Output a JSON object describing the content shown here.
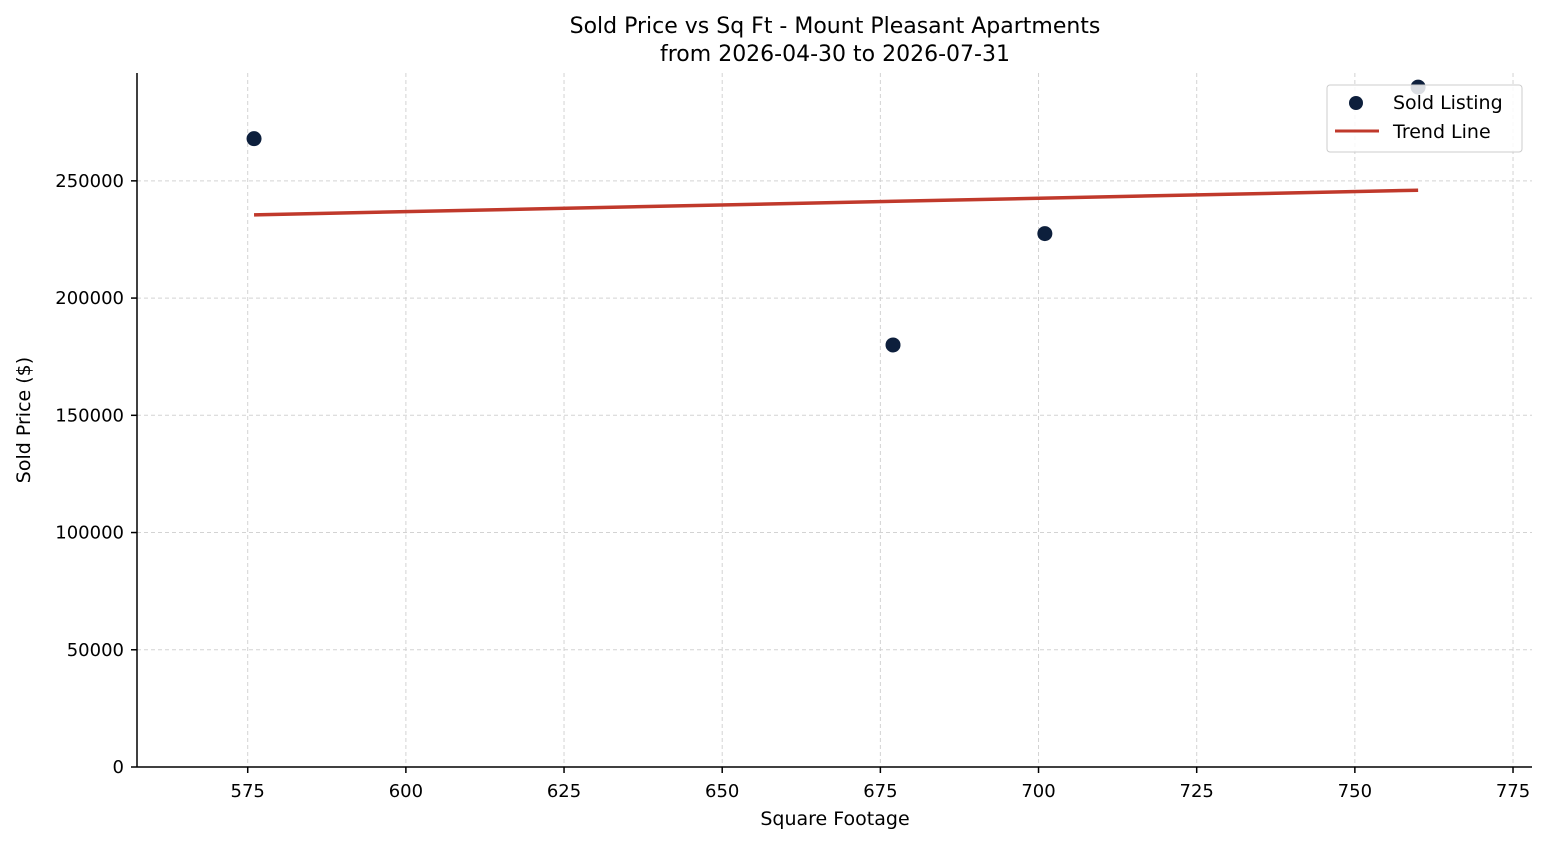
{
  "chart_data": {
    "type": "scatter",
    "title": "Sold Price vs Sq Ft - Mount Pleasant Apartments",
    "subtitle": "from 2026-04-30 to 2026-07-31",
    "xlabel": "Square Footage",
    "ylabel": "Sold Price ($)",
    "xlim": [
      557.5,
      778
    ],
    "ylim": [
      0,
      296000
    ],
    "xticks": [
      575,
      600,
      625,
      650,
      675,
      700,
      725,
      750,
      775
    ],
    "yticks": [
      0,
      50000,
      100000,
      150000,
      200000,
      250000
    ],
    "grid": true,
    "legend_position": "top-right",
    "series": [
      {
        "name": "Sold Listing",
        "kind": "scatter",
        "color": "#0d1f3c",
        "points": [
          {
            "x": 576,
            "y": 268000
          },
          {
            "x": 677,
            "y": 180000
          },
          {
            "x": 701,
            "y": 227500
          },
          {
            "x": 760,
            "y": 290000
          }
        ]
      },
      {
        "name": "Trend Line",
        "kind": "line",
        "color": "#c0392b",
        "points": [
          {
            "x": 576,
            "y": 235500
          },
          {
            "x": 760,
            "y": 246000
          }
        ]
      }
    ]
  }
}
